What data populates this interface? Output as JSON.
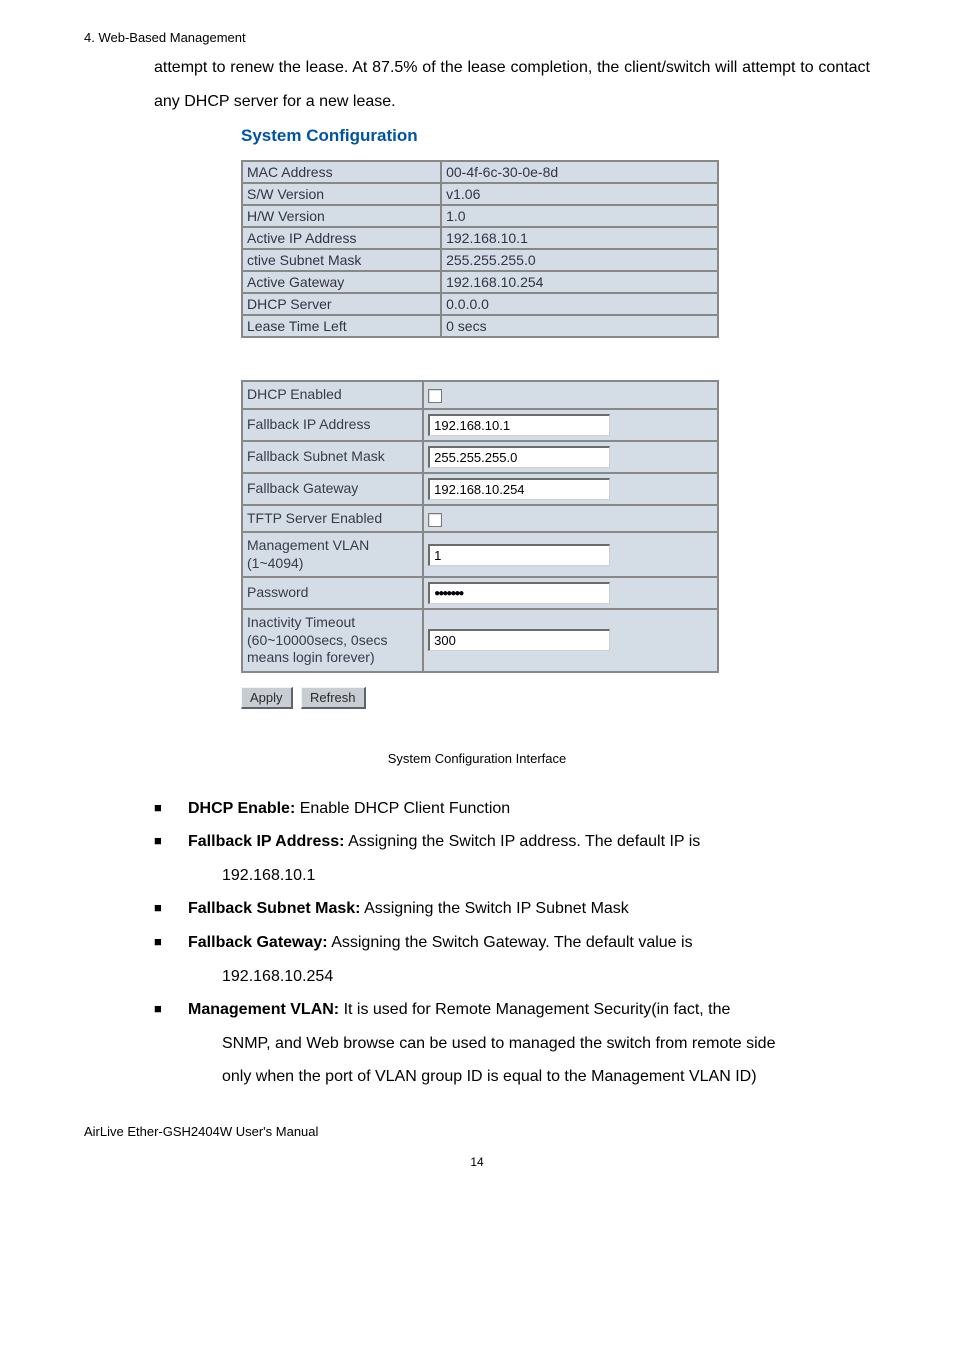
{
  "header_note": "4. Web-Based Management",
  "intro_text": "attempt to renew the lease. At 87.5% of the lease completion, the client/switch will attempt to contact any DHCP server for a new lease.",
  "section_title": "System Configuration",
  "info_rows": [
    {
      "label": "MAC Address",
      "value": "00-4f-6c-30-0e-8d"
    },
    {
      "label": "S/W Version",
      "value": "v1.06"
    },
    {
      "label": "H/W Version",
      "value": "1.0"
    },
    {
      "label": "Active IP Address",
      "value": "192.168.10.1"
    },
    {
      "label": "ctive Subnet Mask",
      "value": "255.255.255.0"
    },
    {
      "label": "Active Gateway",
      "value": "192.168.10.254"
    },
    {
      "label": "DHCP Server",
      "value": "0.0.0.0"
    },
    {
      "label": "Lease Time Left",
      "value": "0 secs"
    }
  ],
  "cfg": {
    "dhcp_enabled_label": "DHCP Enabled",
    "fallback_ip_label": "Fallback IP Address",
    "fallback_ip_value": "192.168.10.1",
    "fallback_mask_label": "Fallback Subnet Mask",
    "fallback_mask_value": "255.255.255.0",
    "fallback_gw_label": "Fallback Gateway",
    "fallback_gw_value": "192.168.10.254",
    "tftp_label": "TFTP Server Enabled",
    "vlan_label": "Management VLAN (1~4094)",
    "vlan_value": "1",
    "password_label": "Password",
    "password_value": "●●●●●●●",
    "timeout_label": "Inactivity Timeout (60~10000secs, 0secs means login forever)",
    "timeout_value": "300"
  },
  "buttons": {
    "apply": "Apply",
    "refresh": "Refresh"
  },
  "caption": "System Configuration Interface",
  "bullets": {
    "b1_term": "DHCP Enable:",
    "b1_rest": " Enable DHCP Client Function",
    "b2_term": "Fallback IP Address:",
    "b2_rest": " Assigning the Switch IP address. The default IP is",
    "b2_cont": "192.168.10.1",
    "b3_term": "Fallback Subnet Mask:",
    "b3_rest": " Assigning the Switch IP Subnet Mask",
    "b4_term": "Fallback Gateway:",
    "b4_rest": " Assigning the Switch Gateway. The default value is",
    "b4_cont": "192.168.10.254",
    "b5_term": "Management VLAN:",
    "b5_rest": " It is used for Remote Management Security(in fact, the",
    "b5_cont1": "SNMP, and Web browse can be used to managed the switch from remote side",
    "b5_cont2": "only when the port of VLAN group ID is equal to the Management VLAN ID)"
  },
  "footer": "AirLive Ether-GSH2404W User's Manual",
  "pagenum": "14",
  "colors": {
    "title": "#0054a6",
    "cell_bg": "#d4dde6",
    "cell_border": "#888888",
    "btn_bg": "#c8cdd4"
  }
}
